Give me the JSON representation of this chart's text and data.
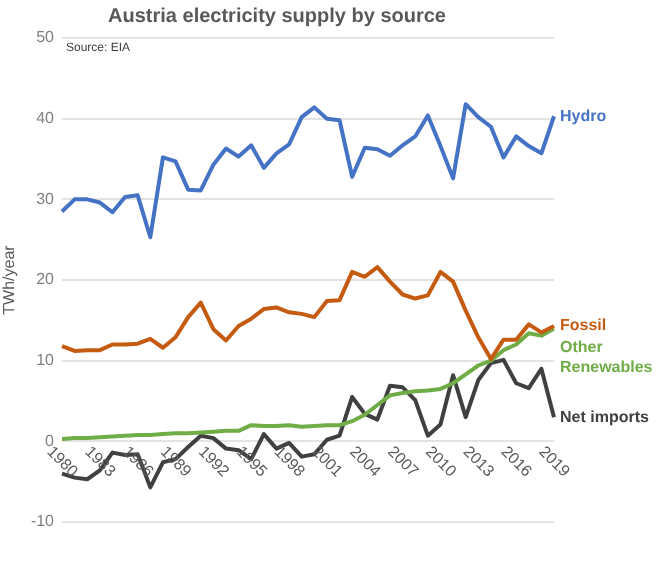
{
  "chart_data": {
    "type": "line",
    "title": "Austria electricity supply by source",
    "ylabel": "TWh/year",
    "annotations": [
      "Source: EIA"
    ],
    "categories": [
      "1980",
      null,
      null,
      "1983",
      null,
      null,
      "1986",
      null,
      null,
      "1989",
      null,
      null,
      "1992",
      null,
      null,
      "1995",
      null,
      null,
      "1998",
      null,
      null,
      "2001",
      null,
      null,
      "2004",
      null,
      null,
      "2007",
      null,
      null,
      "2010",
      null,
      null,
      "2013",
      null,
      null,
      "2016",
      null,
      null,
      "2019"
    ],
    "series": [
      {
        "name": "Hydro",
        "color": "#4472c4",
        "values": [
          28.5,
          30,
          30,
          29.6,
          28.4,
          30.3,
          30.5,
          25.3,
          35.2,
          34.7,
          31.2,
          31.1,
          34.3,
          36.3,
          35.3,
          36.7,
          33.9,
          35.7,
          36.8,
          40.2,
          41.4,
          40.0,
          39.8,
          32.8,
          36.4,
          36.2,
          35.4,
          36.7,
          37.8,
          40.4,
          36.6,
          32.6,
          41.8,
          40.2,
          39.0,
          35.2,
          37.8,
          36.6,
          35.7,
          40.3
        ]
      },
      {
        "name": "Fossil",
        "color": "#c55a11",
        "values": [
          11.8,
          11.2,
          11.3,
          11.3,
          12.0,
          12.0,
          12.1,
          12.7,
          11.6,
          12.9,
          15.4,
          17.2,
          13.9,
          12.5,
          14.3,
          15.2,
          16.4,
          16.6,
          16.0,
          15.8,
          15.4,
          17.4,
          17.5,
          21.0,
          20.4,
          21.6,
          19.8,
          18.2,
          17.7,
          18.1,
          21.0,
          19.8,
          16.2,
          12.9,
          10.2,
          12.6,
          12.6,
          14.5,
          13.5,
          14.3
        ]
      },
      {
        "name": "Other Renewables",
        "color": "#70ad47",
        "values": [
          0.3,
          0.4,
          0.4,
          0.5,
          0.6,
          0.7,
          0.8,
          0.8,
          0.9,
          1.0,
          1.0,
          1.1,
          1.2,
          1.3,
          1.3,
          2.0,
          1.9,
          1.9,
          2.0,
          1.8,
          1.9,
          2.0,
          2.0,
          2.5,
          3.3,
          4.5,
          5.7,
          6.0,
          6.2,
          6.3,
          6.5,
          7.2,
          8.3,
          9.4,
          10.0,
          11.3,
          12.0,
          13.4,
          13.1,
          14.0
        ]
      },
      {
        "name": "Net imports",
        "color": "#404040",
        "values": [
          -4.0,
          -4.5,
          -4.7,
          -3.6,
          -1.4,
          -1.7,
          -1.6,
          -5.7,
          -2.6,
          -2.2,
          -0.7,
          0.7,
          0.4,
          -0.9,
          -1.1,
          -2.2,
          0.9,
          -0.9,
          -0.2,
          -1.9,
          -1.6,
          0.2,
          0.7,
          5.5,
          3.4,
          2.7,
          6.9,
          6.7,
          5.1,
          0.7,
          2.1,
          8.2,
          3.0,
          7.6,
          9.7,
          10.1,
          7.2,
          6.6,
          9.0,
          3.0
        ]
      }
    ],
    "ylim": [
      -10,
      50
    ],
    "yticks": [
      -10,
      0,
      10,
      20,
      30,
      40,
      50
    ],
    "grid": "y",
    "legend": false,
    "marker": "none",
    "line_style": "solid"
  }
}
